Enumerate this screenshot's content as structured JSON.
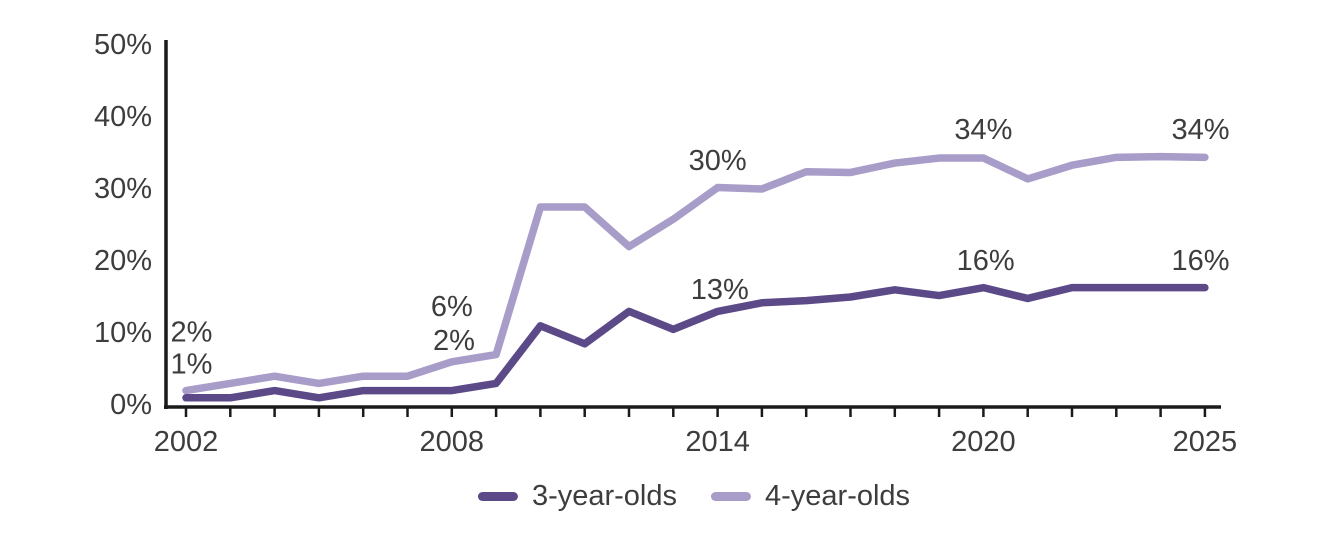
{
  "chart_data": {
    "type": "line",
    "title": "",
    "xlabel": "",
    "ylabel": "",
    "xlim": [
      2002,
      2025
    ],
    "ylim": [
      0,
      50
    ],
    "grid": false,
    "legend_position": "bottom",
    "x": [
      2002,
      2003,
      2004,
      2005,
      2006,
      2007,
      2008,
      2009,
      2010,
      2011,
      2012,
      2013,
      2014,
      2015,
      2016,
      2017,
      2018,
      2019,
      2020,
      2021,
      2022,
      2023,
      2024,
      2025
    ],
    "series": [
      {
        "name": "4-year-olds",
        "color": "#a89cc9",
        "values": [
          2,
          3,
          4,
          3,
          4,
          4,
          6,
          7,
          27.5,
          27.5,
          22,
          25.8,
          30.2,
          30,
          32.4,
          32.3,
          33.6,
          34.3,
          34.3,
          31.4,
          33.3,
          34.4,
          34.5,
          34.4
        ]
      },
      {
        "name": "3-year-olds",
        "color": "#5b4a87",
        "values": [
          1,
          1,
          2,
          1,
          2,
          2,
          2,
          3,
          11,
          8.5,
          13,
          10.5,
          13,
          14.2,
          14.5,
          15,
          16,
          15.2,
          16.3,
          14.8,
          16.3,
          16.3,
          16.3,
          16.3
        ]
      }
    ],
    "y_ticks": [
      {
        "pct": 0,
        "label": "0%"
      },
      {
        "pct": 10,
        "label": "10%"
      },
      {
        "pct": 20,
        "label": "20%"
      },
      {
        "pct": 30,
        "label": "30%"
      },
      {
        "pct": 40,
        "label": "40%"
      },
      {
        "pct": 50,
        "label": "50%"
      }
    ],
    "x_tick_labels": [
      {
        "year": 2002,
        "label": "2002"
      },
      {
        "year": 2008,
        "label": "2008"
      },
      {
        "year": 2014,
        "label": "2014"
      },
      {
        "year": 2020,
        "label": "2020"
      },
      {
        "year": 2025,
        "label": "2025"
      }
    ],
    "annotations": [
      {
        "text": "2%",
        "year": 2001.65,
        "pct": 10.1,
        "anchor": "start"
      },
      {
        "text": "1%",
        "year": 2001.65,
        "pct": 5.6,
        "anchor": "start"
      },
      {
        "text": "6%",
        "year": 2008.0,
        "pct": 13.6,
        "anchor": "middle"
      },
      {
        "text": "2%",
        "year": 2008.05,
        "pct": 8.9,
        "anchor": "middle"
      },
      {
        "text": "30%",
        "year": 2014.0,
        "pct": 33.9,
        "anchor": "middle"
      },
      {
        "text": "13%",
        "year": 2014.05,
        "pct": 16.0,
        "anchor": "middle"
      },
      {
        "text": "34%",
        "year": 2020.0,
        "pct": 38.2,
        "anchor": "middle"
      },
      {
        "text": "16%",
        "year": 2020.05,
        "pct": 20.0,
        "anchor": "middle"
      },
      {
        "text": "34%",
        "year": 2024.9,
        "pct": 38.2,
        "anchor": "middle"
      },
      {
        "text": "16%",
        "year": 2024.9,
        "pct": 20.0,
        "anchor": "middle"
      }
    ]
  },
  "legend": {
    "items": [
      {
        "label": "3-year-olds",
        "color": "#5b4a87"
      },
      {
        "label": "4-year-olds",
        "color": "#a89cc9"
      }
    ]
  },
  "colors": {
    "axis": "#1a1a1a",
    "text": "#3d3d3d",
    "background": "#ffffff"
  }
}
